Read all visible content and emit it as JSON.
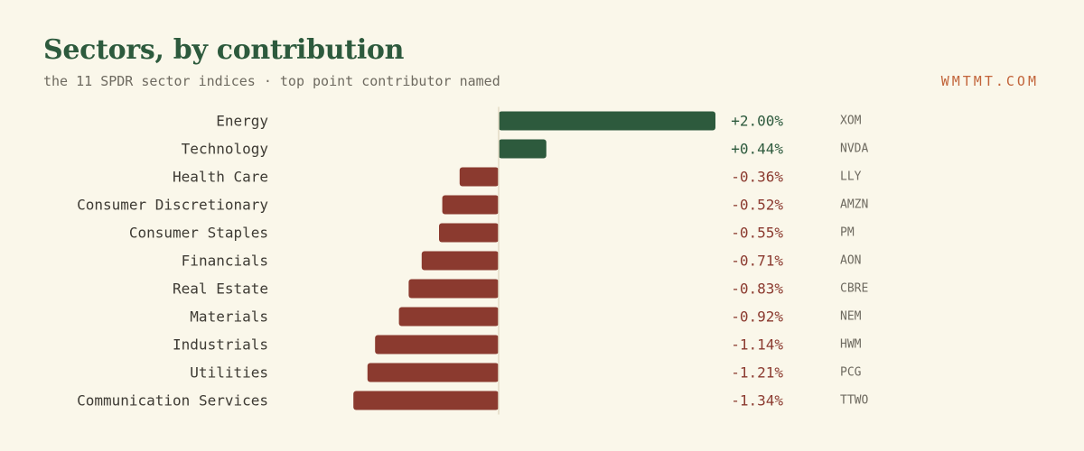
{
  "header": {
    "title": "Sectors, by contribution",
    "subtitle": "the 11 SPDR sector indices · top point contributor named",
    "brand": "WMTMT.COM"
  },
  "colors": {
    "background": "#faf7ea",
    "positive": "#2d5a3d",
    "negative": "#8b3a2f",
    "brand": "#c2643a",
    "axis": "#e3dcc6"
  },
  "chart_data": {
    "type": "bar",
    "orientation": "horizontal",
    "categories": [
      "Energy",
      "Technology",
      "Health Care",
      "Consumer Discretionary",
      "Consumer Staples",
      "Financials",
      "Real Estate",
      "Materials",
      "Industrials",
      "Utilities",
      "Communication Services"
    ],
    "values": [
      2.0,
      0.44,
      -0.36,
      -0.52,
      -0.55,
      -0.71,
      -0.83,
      -0.92,
      -1.14,
      -1.21,
      -1.34
    ],
    "value_labels": [
      "+2.00%",
      "+0.44%",
      "-0.36%",
      "-0.52%",
      "-0.55%",
      "-0.71%",
      "-0.83%",
      "-0.92%",
      "-1.14%",
      "-1.21%",
      "-1.34%"
    ],
    "tickers": [
      "XOM",
      "NVDA",
      "LLY",
      "AMZN",
      "PM",
      "AON",
      "CBRE",
      "NEM",
      "HWM",
      "PCG",
      "TTWO"
    ],
    "xlim": [
      -1.34,
      2.0
    ],
    "grid": false,
    "legend": "none"
  }
}
